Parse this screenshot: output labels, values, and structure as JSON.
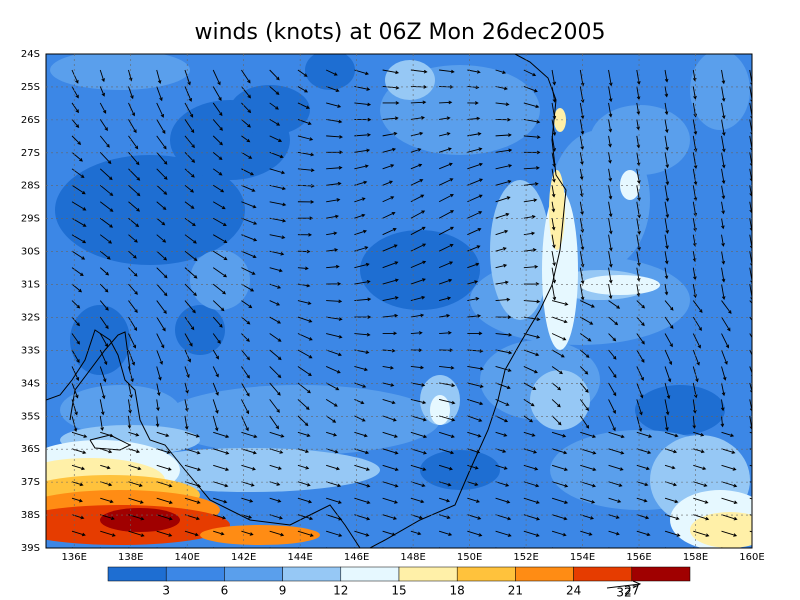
{
  "title": "winds (knots) at 06Z Mon 26dec2005",
  "lat_labels": [
    "24S",
    "25S",
    "26S",
    "27S",
    "28S",
    "29S",
    "30S",
    "31S",
    "32S",
    "33S",
    "34S",
    "35S",
    "36S",
    "37S",
    "38S",
    "39S"
  ],
  "lon_labels": [
    "136E",
    "138E",
    "140E",
    "142E",
    "144E",
    "146E",
    "148E",
    "150E",
    "152E",
    "154E",
    "156E",
    "158E",
    "160E"
  ],
  "colorbar": {
    "levels": [
      3,
      6,
      9,
      12,
      15,
      18,
      21,
      24,
      27
    ],
    "colors": [
      "#1e6ed2",
      "#3c87e6",
      "#5a9fec",
      "#96c8f5",
      "#e6f8ff",
      "#fff0a8",
      "#ffc23c",
      "#ff8c14",
      "#e63c00",
      "#a00000"
    ]
  },
  "reference_vector": "32"
}
